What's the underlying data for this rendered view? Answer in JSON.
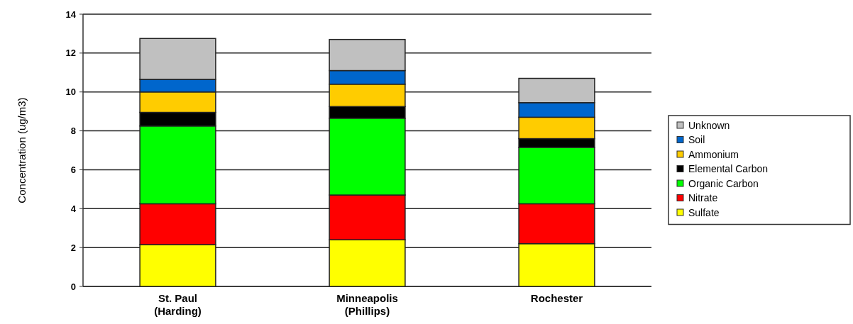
{
  "chart_data": {
    "type": "bar",
    "stacked": true,
    "ylabel": "Concentration (ug/m3)",
    "categories": [
      "St. Paul\n(Harding)",
      "Minneapolis\n(Phillips)",
      "Rochester"
    ],
    "series": [
      {
        "name": "Sulfate",
        "color": "#ffff00",
        "values": [
          2.15,
          2.4,
          2.2
        ]
      },
      {
        "name": "Nitrate",
        "color": "#ff0000",
        "values": [
          2.1,
          2.3,
          2.05
        ]
      },
      {
        "name": "Organic Carbon",
        "color": "#00ff00",
        "values": [
          4.0,
          3.95,
          2.9
        ]
      },
      {
        "name": "Elemental Carbon",
        "color": "#000000",
        "values": [
          0.7,
          0.6,
          0.45
        ]
      },
      {
        "name": "Ammonium",
        "color": "#ffcc00",
        "values": [
          1.05,
          1.15,
          1.1
        ]
      },
      {
        "name": "Soil",
        "color": "#0066cc",
        "values": [
          0.65,
          0.7,
          0.75
        ]
      },
      {
        "name": "Unknown",
        "color": "#c0c0c0",
        "values": [
          2.1,
          1.6,
          1.25
        ]
      }
    ],
    "ylim": [
      0,
      14
    ],
    "yticks": [
      0,
      2,
      4,
      6,
      8,
      10,
      12,
      14
    ],
    "grid": "y",
    "legend": "right"
  }
}
